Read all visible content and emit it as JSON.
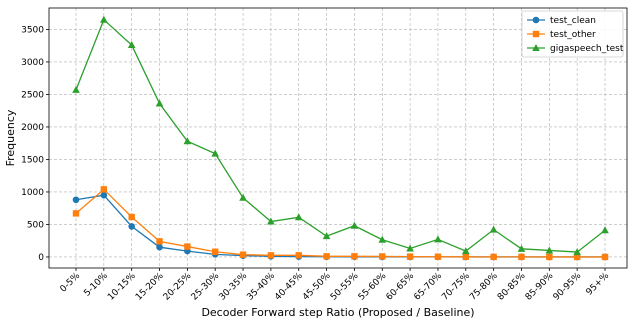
{
  "chart_data": {
    "type": "line",
    "xlabel": "Decoder Forward step Ratio (Proposed / Baseline)",
    "ylabel": "Frequency",
    "categories": [
      "0-5%",
      "5-10%",
      "10-15%",
      "15-20%",
      "20-25%",
      "25-30%",
      "30-35%",
      "35-40%",
      "40-45%",
      "45-50%",
      "50-55%",
      "55-60%",
      "60-65%",
      "65-70%",
      "70-75%",
      "75-80%",
      "80-85%",
      "85-90%",
      "90-95%",
      "95+%"
    ],
    "ylim": [
      -170,
      3830
    ],
    "yticks": [
      0,
      500,
      1000,
      1500,
      2000,
      2500,
      3000,
      3500
    ],
    "grid": true,
    "legend_position": "top-right",
    "series": [
      {
        "name": "test_clean",
        "color": "#1f77b4",
        "marker": "circle",
        "values": [
          880,
          950,
          470,
          150,
          90,
          40,
          20,
          10,
          5,
          3,
          2,
          1,
          1,
          1,
          0,
          0,
          0,
          0,
          0,
          0
        ]
      },
      {
        "name": "test_other",
        "color": "#ff7f0e",
        "marker": "square",
        "values": [
          670,
          1040,
          615,
          240,
          160,
          80,
          35,
          25,
          25,
          10,
          10,
          8,
          5,
          3,
          2,
          1,
          1,
          0,
          0,
          0
        ]
      },
      {
        "name": "gigaspeech_test",
        "color": "#2ca02c",
        "marker": "triangle",
        "values": [
          2570,
          3650,
          3260,
          2360,
          1780,
          1590,
          910,
          545,
          610,
          320,
          480,
          265,
          130,
          270,
          90,
          420,
          125,
          100,
          75,
          410
        ]
      }
    ]
  }
}
